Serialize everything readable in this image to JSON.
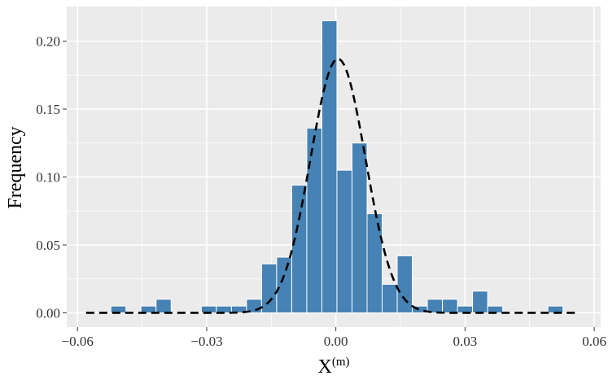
{
  "chart_data": {
    "type": "bar",
    "subtype": "histogram",
    "title": "",
    "xlabel": "X",
    "xlabel_superscript": "(m)",
    "ylabel": "Frequency",
    "xlim": [
      -0.0625,
      0.0615
    ],
    "ylim": [
      -0.0105,
      0.2255
    ],
    "x_ticks": [
      -0.06,
      -0.03,
      0.0,
      0.03,
      0.06
    ],
    "x_tick_labels": [
      "−0.06",
      "−0.03",
      "0.00",
      "0.03",
      "0.06"
    ],
    "y_ticks": [
      0.0,
      0.05,
      0.1,
      0.15,
      0.2
    ],
    "y_tick_labels": [
      "0.00",
      "0.05",
      "0.10",
      "0.15",
      "0.20"
    ],
    "bin_width": 0.0035,
    "bins": [
      {
        "center": -0.0505,
        "value": 0.005
      },
      {
        "center": -0.0435,
        "value": 0.005
      },
      {
        "center": -0.04,
        "value": 0.01
      },
      {
        "center": -0.0295,
        "value": 0.005
      },
      {
        "center": -0.026,
        "value": 0.005
      },
      {
        "center": -0.0225,
        "value": 0.005
      },
      {
        "center": -0.019,
        "value": 0.01
      },
      {
        "center": -0.0155,
        "value": 0.036
      },
      {
        "center": -0.012,
        "value": 0.041
      },
      {
        "center": -0.0085,
        "value": 0.094
      },
      {
        "center": -0.005,
        "value": 0.136
      },
      {
        "center": -0.0015,
        "value": 0.215
      },
      {
        "center": 0.002,
        "value": 0.105
      },
      {
        "center": 0.0055,
        "value": 0.125
      },
      {
        "center": 0.009,
        "value": 0.073
      },
      {
        "center": 0.0125,
        "value": 0.021
      },
      {
        "center": 0.016,
        "value": 0.042
      },
      {
        "center": 0.0195,
        "value": 0.005
      },
      {
        "center": 0.023,
        "value": 0.01
      },
      {
        "center": 0.0265,
        "value": 0.01
      },
      {
        "center": 0.03,
        "value": 0.005
      },
      {
        "center": 0.0335,
        "value": 0.016
      },
      {
        "center": 0.037,
        "value": 0.005
      },
      {
        "center": 0.051,
        "value": 0.005
      }
    ],
    "density_curve": {
      "style": "dashed",
      "color": "#000000",
      "x_range": [
        -0.058,
        0.056
      ],
      "mean": 0.0005,
      "sd": 0.0064,
      "peak": 0.187
    },
    "bar_color": "#4682b4",
    "bar_outline_color": "#ffffff",
    "panel_background": "#ebebeb",
    "grid_color": "#ffffff",
    "grid": true,
    "legend": "none"
  }
}
